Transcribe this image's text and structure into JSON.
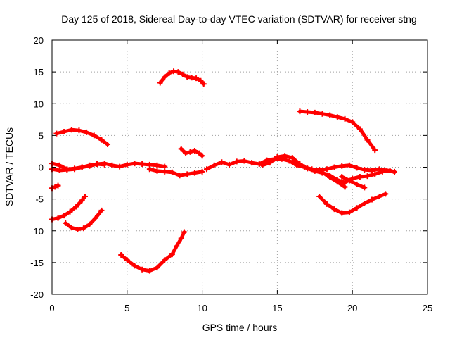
{
  "chart_data": {
    "type": "line",
    "title": "Day 125 of 2018, Sidereal Day-to-day VTEC variation (SDTVAR) for receiver stng",
    "xlabel": "GPS time / hours",
    "ylabel": "SDTVAR / TECUs",
    "xlim": [
      0,
      25
    ],
    "ylim": [
      -20,
      20
    ],
    "xticks": [
      0,
      5,
      10,
      15,
      20,
      25
    ],
    "yticks": [
      -20,
      -15,
      -10,
      -5,
      0,
      5,
      10,
      15,
      20
    ],
    "grid": true,
    "color": "#ff0000",
    "series": [
      {
        "name": "arc-top-left",
        "x": [
          0.3,
          0.8,
          1.3,
          1.8,
          2.3,
          2.8,
          3.3,
          3.7
        ],
        "y": [
          5.3,
          5.6,
          5.9,
          5.8,
          5.5,
          5.0,
          4.3,
          3.6
        ]
      },
      {
        "name": "arc-peak-mid",
        "x": [
          7.2,
          7.5,
          7.8,
          8.1,
          8.4,
          8.7,
          9.0,
          9.3,
          9.6,
          9.9,
          10.1
        ],
        "y": [
          13.3,
          14.2,
          14.8,
          15.1,
          15.0,
          14.6,
          14.2,
          14.1,
          14.0,
          13.6,
          13.1
        ]
      },
      {
        "name": "arc-upper-right",
        "x": [
          16.5,
          17.0,
          17.5,
          18.0,
          18.5,
          19.0,
          19.5,
          20.0,
          20.5,
          21.0,
          21.5
        ],
        "y": [
          8.8,
          8.7,
          8.6,
          8.4,
          8.2,
          7.9,
          7.6,
          7.1,
          6.0,
          4.3,
          2.7
        ]
      },
      {
        "name": "band-near-zero-left",
        "x": [
          0.0,
          0.5,
          1.0,
          1.5,
          2.0,
          2.5,
          3.0,
          3.5,
          4.0,
          4.5,
          5.0,
          5.5,
          6.0,
          6.5,
          7.0,
          7.5
        ],
        "y": [
          0.6,
          0.3,
          -0.3,
          -0.2,
          0.0,
          0.2,
          0.5,
          0.6,
          0.3,
          0.1,
          0.4,
          0.6,
          0.5,
          0.4,
          0.3,
          0.1
        ]
      },
      {
        "name": "band-near-zero-left-2",
        "x": [
          0.0,
          0.5,
          1.0,
          1.5,
          2.0,
          2.5,
          3.0,
          3.5
        ],
        "y": [
          -0.3,
          -0.5,
          -0.4,
          -0.3,
          0.0,
          0.3,
          0.5,
          0.4
        ]
      },
      {
        "name": "band-mid-lower",
        "x": [
          6.5,
          7.0,
          7.5,
          8.0,
          8.5,
          9.0,
          9.5,
          10.0
        ],
        "y": [
          -0.3,
          -0.6,
          -0.7,
          -0.8,
          -1.3,
          -1.1,
          -0.9,
          -0.7
        ]
      },
      {
        "name": "hump-near-nine",
        "x": [
          8.6,
          8.9,
          9.2,
          9.5,
          9.8,
          10.0
        ],
        "y": [
          2.9,
          2.2,
          2.4,
          2.6,
          2.2,
          1.8
        ]
      },
      {
        "name": "band-near-zero-right",
        "x": [
          10.3,
          10.8,
          11.3,
          11.8,
          12.3,
          12.8,
          13.3,
          13.8,
          14.3,
          14.8,
          15.3,
          15.8,
          16.3,
          16.8,
          17.3,
          17.8,
          18.3,
          18.8,
          19.3,
          19.8,
          20.3,
          20.8,
          21.3,
          21.8,
          22.3,
          22.8
        ],
        "y": [
          -0.3,
          0.3,
          0.8,
          0.4,
          0.9,
          1.0,
          0.7,
          0.5,
          1.1,
          1.3,
          1.3,
          1.0,
          0.3,
          0.0,
          -0.3,
          -0.4,
          -0.3,
          0.0,
          0.2,
          0.3,
          -0.1,
          -0.4,
          -0.5,
          -0.3,
          -0.5,
          -0.7
        ]
      },
      {
        "name": "band-right-lower",
        "x": [
          14.0,
          14.5,
          15.0,
          15.5,
          16.0,
          16.5,
          17.0,
          17.5,
          18.0,
          18.5,
          19.0,
          19.5
        ],
        "y": [
          0.3,
          0.7,
          1.6,
          1.8,
          1.5,
          0.5,
          -0.2,
          -0.5,
          -0.8,
          -1.6,
          -2.3,
          -3.1
        ]
      },
      {
        "name": "arc-right-down",
        "x": [
          16.0,
          16.5,
          17.0,
          17.5,
          18.0,
          18.5,
          19.0,
          19.5,
          20.0,
          20.5,
          21.0,
          21.5,
          22.0,
          22.5,
          22.8
        ],
        "y": [
          0.9,
          0.4,
          -0.2,
          -0.6,
          -0.9,
          -1.3,
          -2.0,
          -2.4,
          -1.8,
          -1.5,
          -1.4,
          -1.1,
          -0.7,
          -0.5,
          -0.8
        ]
      },
      {
        "name": "tail-right",
        "x": [
          19.3,
          19.8,
          20.3,
          20.8
        ],
        "y": [
          -1.5,
          -2.1,
          -2.7,
          -3.2
        ]
      },
      {
        "name": "stub-left",
        "x": [
          0.0,
          0.2,
          0.4
        ],
        "y": [
          -3.3,
          -3.1,
          -2.9
        ]
      },
      {
        "name": "arc-left-rising",
        "x": [
          0.0,
          0.4,
          0.8,
          1.2,
          1.6,
          2.0,
          2.2
        ],
        "y": [
          -8.2,
          -8.0,
          -7.6,
          -7.0,
          -6.2,
          -5.2,
          -4.6
        ]
      },
      {
        "name": "arc-left-dip",
        "x": [
          0.9,
          1.3,
          1.7,
          2.1,
          2.5,
          2.9,
          3.3
        ],
        "y": [
          -8.8,
          -9.5,
          -9.8,
          -9.6,
          -9.0,
          -8.0,
          -6.8
        ]
      },
      {
        "name": "arc-bottom-dip",
        "x": [
          4.6,
          5.0,
          5.5,
          6.0,
          6.5,
          7.0,
          7.5,
          8.0,
          8.3,
          8.6,
          8.8
        ],
        "y": [
          -13.8,
          -14.6,
          -15.5,
          -16.1,
          -16.3,
          -15.8,
          -14.6,
          -13.7,
          -12.4,
          -11.2,
          -10.2
        ]
      },
      {
        "name": "arc-right-low",
        "x": [
          17.8,
          18.3,
          18.8,
          19.3,
          19.8,
          20.3,
          20.8,
          21.3,
          21.8,
          22.2
        ],
        "y": [
          -4.6,
          -5.8,
          -6.6,
          -7.2,
          -7.1,
          -6.4,
          -5.7,
          -5.1,
          -4.6,
          -4.2
        ]
      }
    ]
  }
}
